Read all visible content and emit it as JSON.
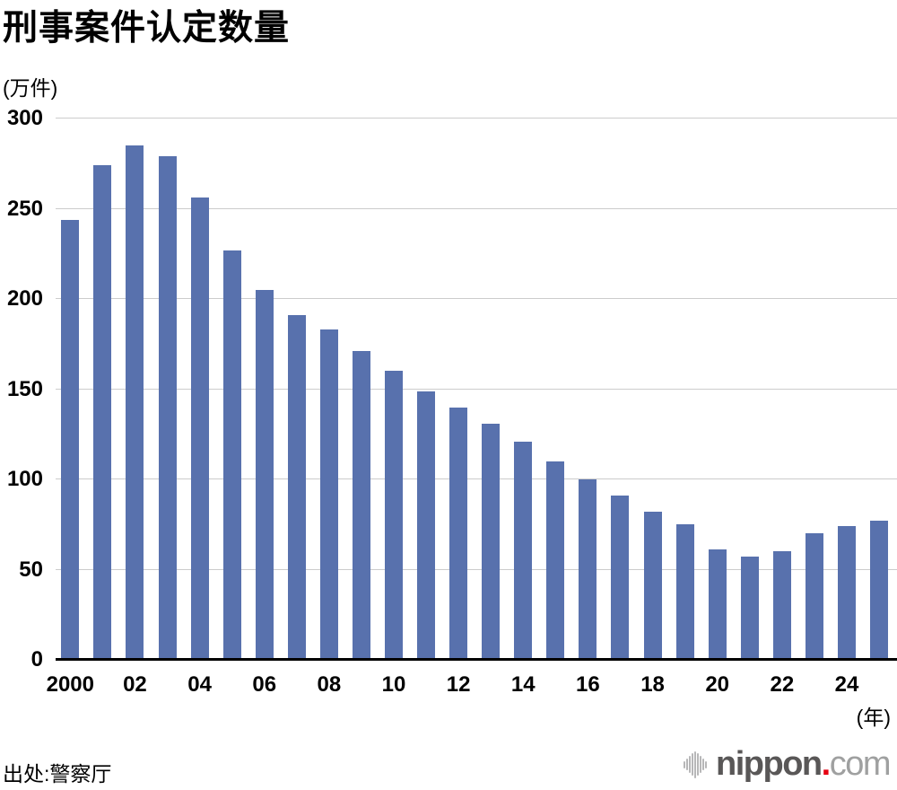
{
  "title": "刑事案件认定数量",
  "source": "出处:警察厅",
  "logo": {
    "mark_icon": "soundwave-bars-icon",
    "nippon": "nippon",
    "dot": ".",
    "com": "com"
  },
  "colors": {
    "bar": "#5871ad",
    "gridline": "#cccccc",
    "axis_line": "#000000",
    "text": "#000000",
    "logo_dark_gray": "#595757",
    "logo_light_gray": "#9fa0a0",
    "logo_red": "#e60012",
    "logo_mark_gray": "#b7b7b8"
  },
  "chart_data": {
    "type": "bar",
    "title": "刑事案件认定数量",
    "ylabel": "(万件)",
    "xlabel": "(年)",
    "x": [
      2000,
      2001,
      2002,
      2003,
      2004,
      2005,
      2006,
      2007,
      2008,
      2009,
      2010,
      2011,
      2012,
      2013,
      2014,
      2015,
      2016,
      2017,
      2018,
      2019,
      2020,
      2021,
      2022,
      2023,
      2024,
      2025
    ],
    "values": [
      244,
      274,
      285,
      279,
      256,
      227,
      205,
      191,
      183,
      171,
      160,
      149,
      140,
      131,
      121,
      110,
      100,
      91,
      82,
      75,
      61,
      57,
      60,
      70,
      74,
      77
    ],
    "ylim": [
      0,
      300
    ],
    "yticks": [
      0,
      50,
      100,
      150,
      200,
      250,
      300
    ],
    "xtick_labels": [
      "2000",
      "02",
      "04",
      "06",
      "08",
      "10",
      "12",
      "14",
      "16",
      "18",
      "20",
      "22",
      "24"
    ],
    "xtick_every": 2,
    "grid": true,
    "legend": false
  }
}
